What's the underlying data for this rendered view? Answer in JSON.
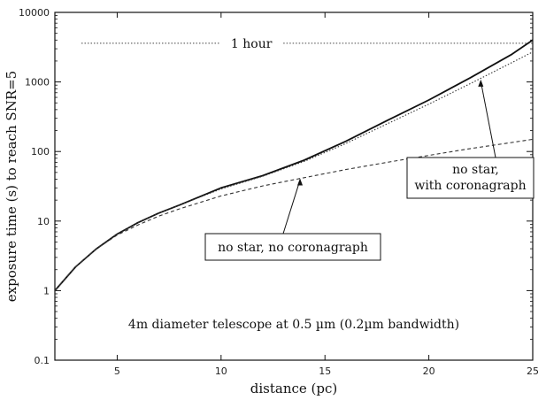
{
  "chart_data": {
    "type": "line",
    "title": "",
    "xlabel": "distance (pc)",
    "ylabel": "exposure time (s) to reach SNR=5",
    "xlim": [
      2,
      25
    ],
    "ylim": [
      0.1,
      10000
    ],
    "yscale": "log",
    "x_ticks": [
      "5",
      "10",
      "15",
      "20",
      "25"
    ],
    "y_ticks": [
      "0.1",
      "1",
      "10",
      "100",
      "1000",
      "10000"
    ],
    "reference_line": {
      "label": "1 hour",
      "y": 3600,
      "style": "dotted"
    },
    "series": [
      {
        "name": "",
        "style": "solid",
        "x": [
          2,
          3,
          4,
          5,
          6,
          7,
          8,
          10,
          12,
          14,
          16,
          18,
          20,
          22,
          24,
          25
        ],
        "y": [
          1,
          2.2,
          4,
          6.5,
          9.5,
          13,
          17,
          30,
          45,
          75,
          140,
          280,
          550,
          1150,
          2500,
          4000
        ]
      },
      {
        "name": "no star, with coronagraph",
        "style": "dotted",
        "x": [
          2,
          3,
          4,
          5,
          6,
          7,
          8,
          10,
          12,
          14,
          16,
          18,
          20,
          22,
          24,
          25
        ],
        "y": [
          1,
          2.2,
          4,
          6.5,
          9.5,
          13,
          17,
          29,
          44,
          72,
          130,
          250,
          480,
          950,
          1900,
          2700
        ]
      },
      {
        "name": "no star, no coronagraph",
        "style": "dashed",
        "x": [
          2,
          3,
          4,
          5,
          6,
          7,
          8,
          10,
          12,
          14,
          16,
          18,
          20,
          22,
          24,
          25
        ],
        "y": [
          1,
          2.2,
          4,
          6.3,
          8.8,
          11.8,
          15,
          23,
          32,
          42,
          55,
          70,
          88,
          110,
          135,
          150
        ]
      }
    ],
    "annotations": [
      {
        "text": "no star,",
        "target": "no star, with coronagraph"
      },
      {
        "text": "with coronagraph",
        "target": "no star, with coronagraph"
      },
      {
        "text": "no star, no coronagraph",
        "target": "no star, no coronagraph"
      },
      {
        "text": "4m diameter telescope at 0.5 µm (0.2µm bandwidth)",
        "target": ""
      }
    ],
    "grid": false,
    "legend": "none"
  }
}
